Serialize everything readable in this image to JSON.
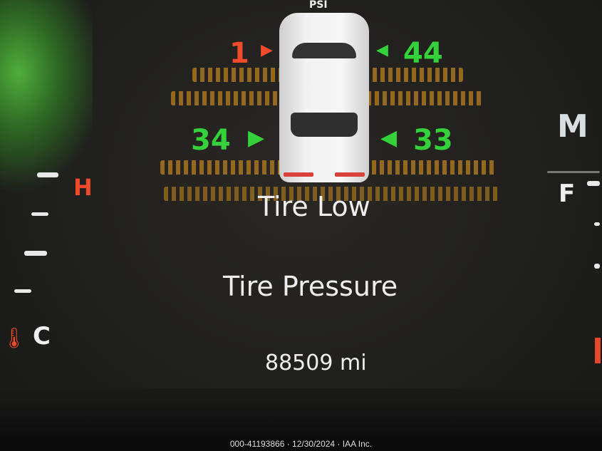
{
  "display": {
    "unit_label": "PSI",
    "tires": {
      "front_left": "1",
      "front_right": "44",
      "rear_left": "34",
      "rear_right": "33"
    },
    "status": "Tire Low",
    "title": "Tire Pressure",
    "odometer": "88509 mi"
  },
  "gauges": {
    "temp_hot": "H",
    "temp_cold": "C",
    "fuel_full": "F",
    "mode_label": "M"
  },
  "colors": {
    "low_tire": "#ef4a2a",
    "ok_tire": "#34d13a",
    "background": "#1f1f1d"
  },
  "footer": {
    "caption": "000-41193866 · 12/30/2024 · IAA Inc."
  }
}
